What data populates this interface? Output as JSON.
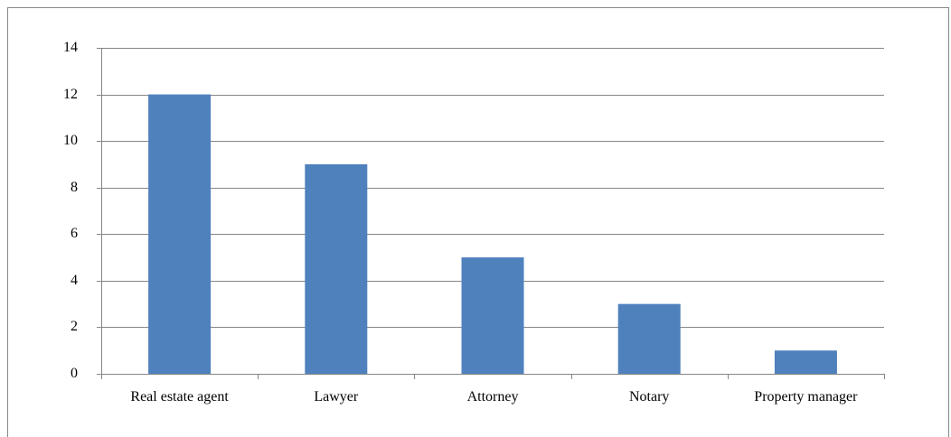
{
  "chart_data": {
    "type": "bar",
    "categories": [
      "Real estate agent",
      "Lawyer",
      "Attorney",
      "Notary",
      "Property manager"
    ],
    "values": [
      12,
      9,
      5,
      3,
      1
    ],
    "color": "#4f81bd",
    "ylim": [
      0,
      14
    ],
    "yticks": [
      0,
      2,
      4,
      6,
      8,
      10,
      12,
      14
    ],
    "grid": true
  }
}
